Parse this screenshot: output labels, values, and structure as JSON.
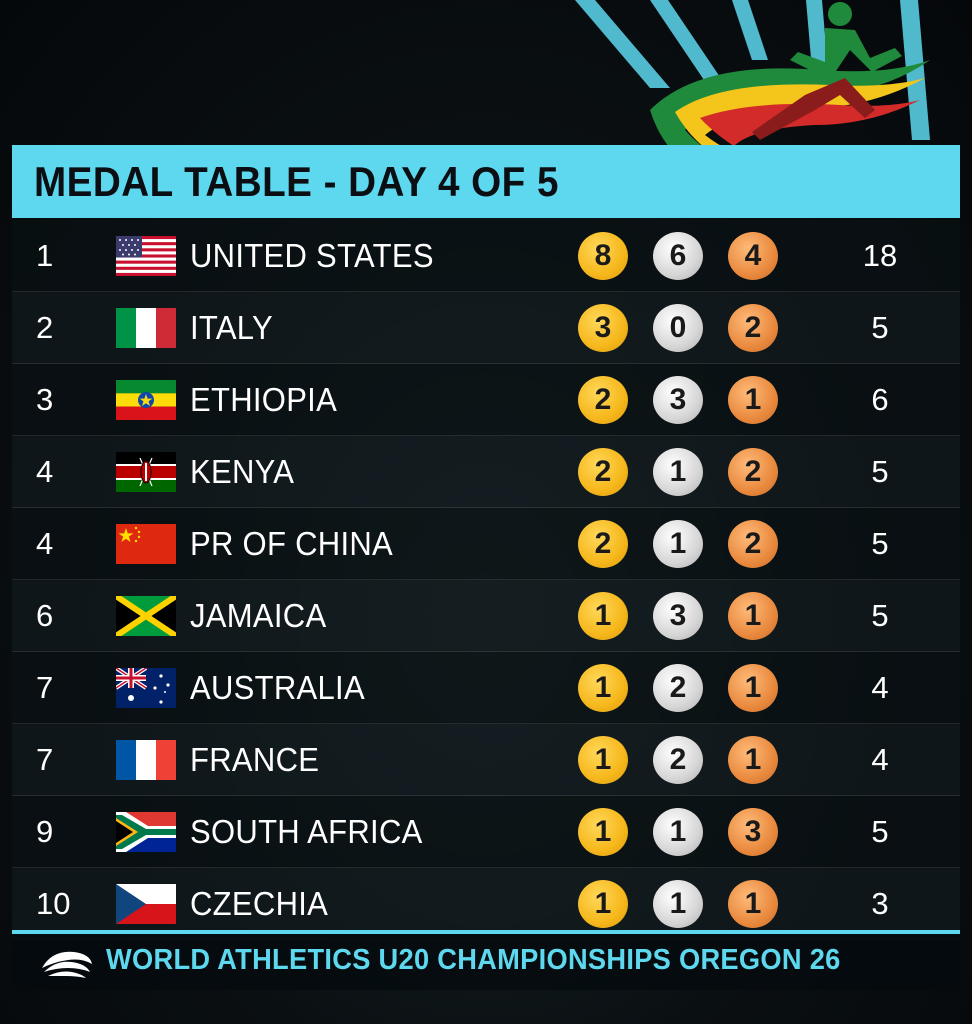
{
  "header": {
    "title": "MEDAL TABLE - DAY 4 OF 5"
  },
  "rows": [
    {
      "rank": "1",
      "country": "UNITED STATES",
      "flag": "usa-flag",
      "gold": "8",
      "silver": "6",
      "bronze": "4",
      "total": "18"
    },
    {
      "rank": "2",
      "country": "ITALY",
      "flag": "italy-flag",
      "gold": "3",
      "silver": "0",
      "bronze": "2",
      "total": "5"
    },
    {
      "rank": "3",
      "country": "ETHIOPIA",
      "flag": "ethiopia-flag",
      "gold": "2",
      "silver": "3",
      "bronze": "1",
      "total": "6"
    },
    {
      "rank": "4",
      "country": "KENYA",
      "flag": "kenya-flag",
      "gold": "2",
      "silver": "1",
      "bronze": "2",
      "total": "5"
    },
    {
      "rank": "4",
      "country": "PR OF CHINA",
      "flag": "china-flag",
      "gold": "2",
      "silver": "1",
      "bronze": "2",
      "total": "5"
    },
    {
      "rank": "6",
      "country": "JAMAICA",
      "flag": "jamaica-flag",
      "gold": "1",
      "silver": "3",
      "bronze": "1",
      "total": "5"
    },
    {
      "rank": "7",
      "country": "AUSTRALIA",
      "flag": "australia-flag",
      "gold": "1",
      "silver": "2",
      "bronze": "1",
      "total": "4"
    },
    {
      "rank": "7",
      "country": "FRANCE",
      "flag": "france-flag",
      "gold": "1",
      "silver": "2",
      "bronze": "1",
      "total": "4"
    },
    {
      "rank": "9",
      "country": "SOUTH AFRICA",
      "flag": "south-africa-flag",
      "gold": "1",
      "silver": "1",
      "bronze": "3",
      "total": "5"
    },
    {
      "rank": "10",
      "country": "CZECHIA",
      "flag": "czechia-flag",
      "gold": "1",
      "silver": "1",
      "bronze": "1",
      "total": "3"
    }
  ],
  "footer": {
    "text": "WORLD ATHLETICS U20 CHAMPIONSHIPS OREGON 26"
  },
  "colors": {
    "accent": "#5ed8ee",
    "gold": "#f6b71b",
    "silver": "#d6d6d6",
    "bronze": "#e98a3e"
  }
}
